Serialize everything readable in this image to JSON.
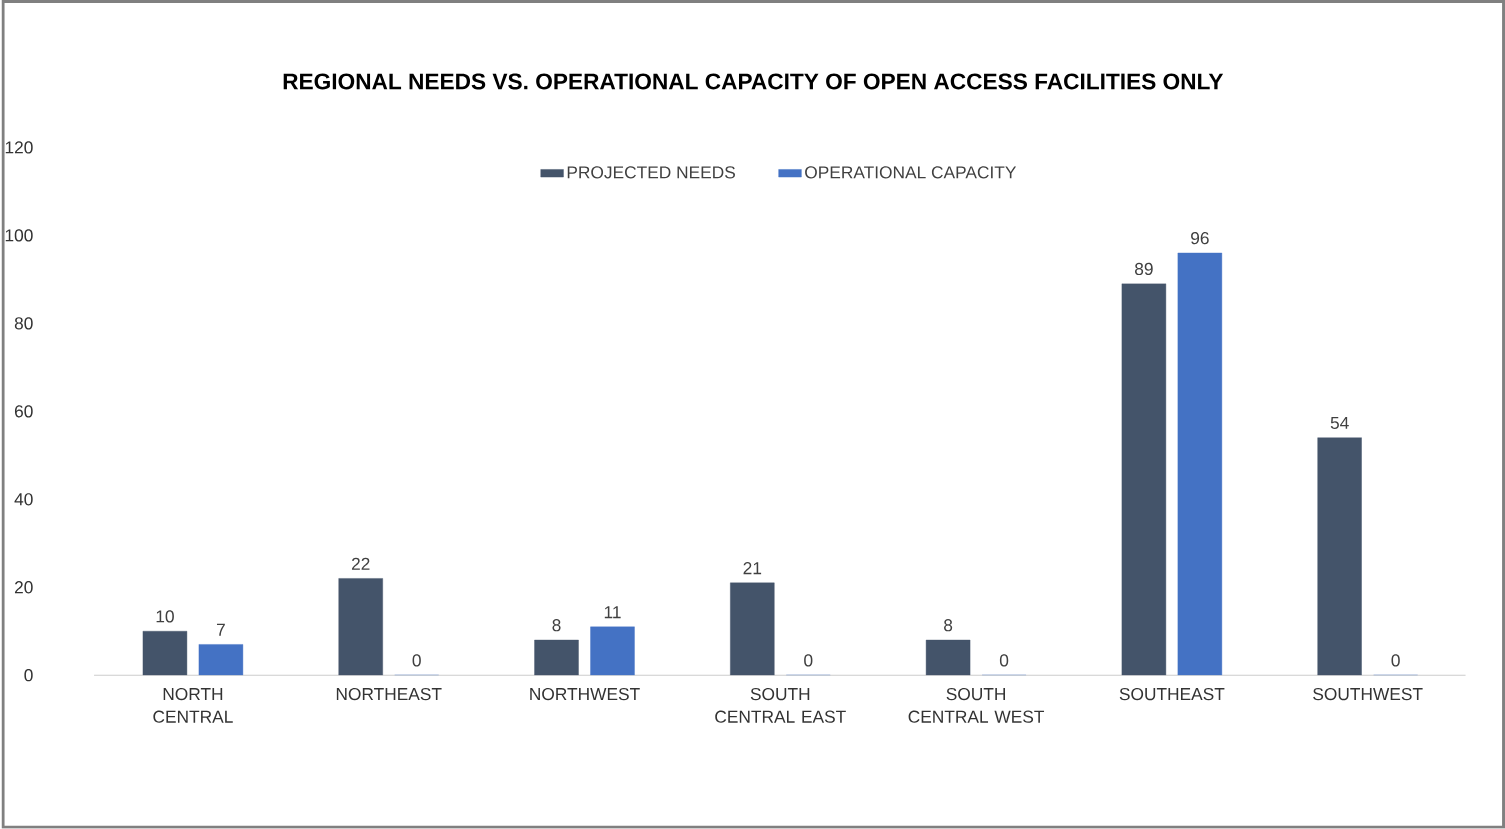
{
  "chart_data": {
    "type": "bar",
    "title": "REGIONAL NEEDS VS. OPERATIONAL CAPACITY OF OPEN ACCESS FACILITIES ONLY",
    "categories": [
      "NORTH CENTRAL",
      "NORTHEAST",
      "NORTHWEST",
      "SOUTH CENTRAL EAST",
      "SOUTH CENTRAL WEST",
      "SOUTHEAST",
      "SOUTHWEST"
    ],
    "series": [
      {
        "name": "PROJECTED  NEEDS",
        "color": "#44546a",
        "values": [
          10,
          22,
          8,
          21,
          8,
          89,
          54
        ]
      },
      {
        "name": "OPERATIONAL CAPACITY",
        "color": "#4472c4",
        "values": [
          7,
          0,
          11,
          0,
          0,
          96,
          0
        ]
      }
    ],
    "ylim": [
      0,
      120
    ],
    "yticks": [
      0,
      20,
      40,
      60,
      80,
      100,
      120
    ],
    "data_labels": true,
    "legend": "top",
    "grid": false
  }
}
